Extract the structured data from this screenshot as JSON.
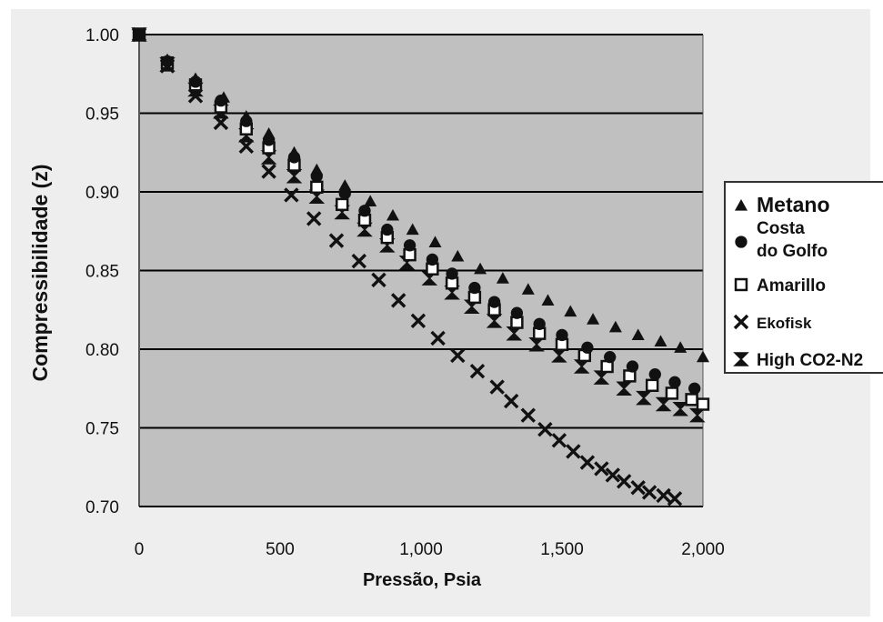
{
  "chart_data": {
    "type": "scatter",
    "xlabel": "Pressão, Psia",
    "ylabel": "Compressibilidade (z)",
    "xlim": [
      0,
      2000
    ],
    "ylim": [
      0.7,
      1.0
    ],
    "x_ticks": [
      "0",
      "500",
      "1,000",
      "1,500",
      "2,000"
    ],
    "y_ticks": [
      "0.70",
      "0.75",
      "0.80",
      "0.85",
      "0.90",
      "0.95",
      "1.00"
    ],
    "grid": "horizontal",
    "legend_position": "right",
    "colors": {
      "plot_background": "#c0c0c0",
      "grid": "#000000",
      "marker": "#111111",
      "marker_hollow_fill": "#ffffff"
    },
    "series": [
      {
        "name": "Metano",
        "marker": "triangle",
        "x": [
          0,
          100,
          200,
          300,
          380,
          460,
          550,
          630,
          730,
          820,
          900,
          970,
          1050,
          1130,
          1210,
          1290,
          1380,
          1450,
          1530,
          1610,
          1690,
          1770,
          1850,
          1920,
          2000
        ],
        "y": [
          1.0,
          0.984,
          0.972,
          0.96,
          0.948,
          0.937,
          0.925,
          0.914,
          0.904,
          0.894,
          0.885,
          0.876,
          0.868,
          0.859,
          0.851,
          0.845,
          0.838,
          0.831,
          0.824,
          0.819,
          0.814,
          0.809,
          0.805,
          0.801,
          0.795
        ]
      },
      {
        "name": "Costa do Golfo",
        "marker": "circle",
        "x": [
          0,
          100,
          200,
          290,
          380,
          460,
          550,
          630,
          730,
          800,
          880,
          960,
          1040,
          1110,
          1190,
          1260,
          1340,
          1420,
          1500,
          1590,
          1670,
          1750,
          1830,
          1900,
          1970
        ],
        "y": [
          1.0,
          0.983,
          0.97,
          0.958,
          0.945,
          0.933,
          0.922,
          0.91,
          0.899,
          0.888,
          0.876,
          0.866,
          0.857,
          0.848,
          0.839,
          0.83,
          0.823,
          0.816,
          0.809,
          0.801,
          0.795,
          0.789,
          0.784,
          0.779,
          0.775
        ]
      },
      {
        "name": "Amarillo",
        "marker": "square-hollow",
        "x": [
          0,
          100,
          200,
          290,
          380,
          460,
          550,
          630,
          720,
          800,
          880,
          960,
          1040,
          1110,
          1190,
          1260,
          1340,
          1420,
          1500,
          1580,
          1660,
          1740,
          1820,
          1890,
          1960,
          2000
        ],
        "y": [
          1.0,
          0.982,
          0.968,
          0.954,
          0.94,
          0.928,
          0.917,
          0.903,
          0.892,
          0.882,
          0.871,
          0.86,
          0.851,
          0.842,
          0.833,
          0.825,
          0.817,
          0.81,
          0.803,
          0.796,
          0.789,
          0.783,
          0.777,
          0.772,
          0.768,
          0.765
        ]
      },
      {
        "name": "Ekofisk",
        "marker": "x",
        "x": [
          0,
          100,
          200,
          290,
          380,
          460,
          540,
          620,
          700,
          780,
          850,
          920,
          990,
          1060,
          1130,
          1200,
          1270,
          1320,
          1380,
          1440,
          1490,
          1540,
          1590,
          1640,
          1680,
          1720,
          1770,
          1810,
          1860,
          1900
        ],
        "y": [
          1.0,
          0.98,
          0.961,
          0.944,
          0.929,
          0.913,
          0.898,
          0.883,
          0.869,
          0.856,
          0.844,
          0.831,
          0.818,
          0.807,
          0.796,
          0.786,
          0.776,
          0.767,
          0.758,
          0.749,
          0.742,
          0.735,
          0.728,
          0.724,
          0.72,
          0.716,
          0.712,
          0.709,
          0.707,
          0.705
        ]
      },
      {
        "name": "High CO2-N2",
        "marker": "hourglass",
        "x": [
          0,
          100,
          200,
          290,
          380,
          460,
          550,
          630,
          720,
          800,
          880,
          950,
          1030,
          1110,
          1180,
          1260,
          1330,
          1410,
          1490,
          1570,
          1640,
          1720,
          1790,
          1860,
          1920,
          1980
        ],
        "y": [
          1.0,
          0.981,
          0.965,
          0.951,
          0.936,
          0.922,
          0.91,
          0.897,
          0.887,
          0.876,
          0.866,
          0.855,
          0.845,
          0.836,
          0.827,
          0.818,
          0.81,
          0.803,
          0.796,
          0.789,
          0.782,
          0.775,
          0.769,
          0.765,
          0.762,
          0.758
        ]
      }
    ]
  },
  "legend": {
    "items": [
      {
        "label_lines": [
          "Metano"
        ],
        "marker": "triangle"
      },
      {
        "label_lines": [
          "Costa",
          "do Golfo"
        ],
        "marker": "circle"
      },
      {
        "label_lines": [
          "Amarillo"
        ],
        "marker": "square-hollow"
      },
      {
        "label_lines": [
          "Ekofisk"
        ],
        "marker": "x"
      },
      {
        "label_lines": [
          "High CO2-N2"
        ],
        "marker": "hourglass"
      }
    ]
  }
}
